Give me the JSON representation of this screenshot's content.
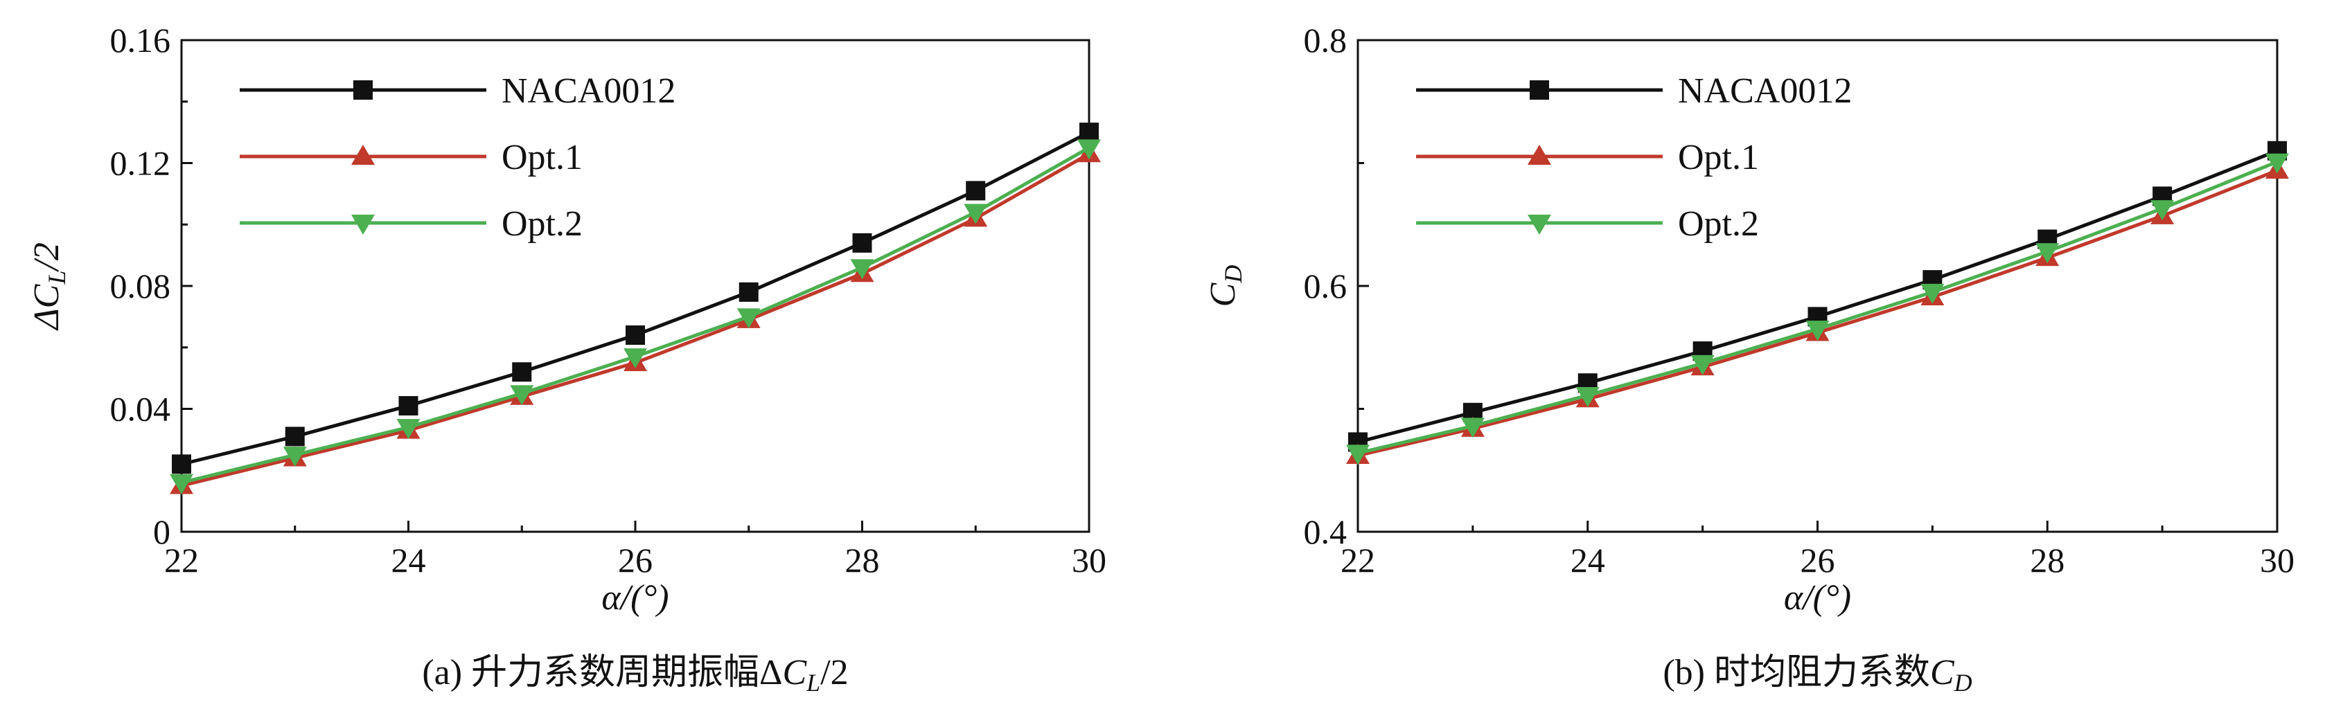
{
  "chart_data": [
    {
      "type": "line",
      "xlabel": "α/(°)",
      "ylabel": "ΔC_L/2",
      "caption": "(a) 升力系数周期振幅ΔC_L/2",
      "xlim": [
        22,
        30
      ],
      "ylim": [
        0,
        0.16
      ],
      "xticks": [
        22,
        24,
        26,
        28,
        30
      ],
      "yticks": [
        0,
        0.04,
        0.08,
        0.12,
        0.16
      ],
      "ytick_labels": [
        "0",
        "0.04",
        "0.08",
        "0.12",
        "0.16"
      ],
      "x": [
        22,
        23,
        24,
        25,
        26,
        27,
        28,
        29,
        30
      ],
      "legend_position": "top-left",
      "grid": false,
      "series": [
        {
          "name": "NACA0012",
          "color": "#111111",
          "marker": "square",
          "values": [
            0.022,
            0.031,
            0.041,
            0.052,
            0.064,
            0.078,
            0.094,
            0.111,
            0.13
          ]
        },
        {
          "name": "Opt.1",
          "color": "#c0392b",
          "marker": "triangle-up",
          "values": [
            0.015,
            0.024,
            0.033,
            0.044,
            0.055,
            0.069,
            0.084,
            0.102,
            0.123
          ]
        },
        {
          "name": "Opt.2",
          "color": "#4caf50",
          "marker": "triangle-down",
          "values": [
            0.016,
            0.025,
            0.034,
            0.045,
            0.057,
            0.07,
            0.086,
            0.104,
            0.125
          ]
        }
      ]
    },
    {
      "type": "line",
      "xlabel": "α/(°)",
      "ylabel": "C_D",
      "caption": "(b) 时均阻力系数C_D",
      "xlim": [
        22,
        30
      ],
      "ylim": [
        0.4,
        0.8
      ],
      "xticks": [
        22,
        24,
        26,
        28,
        30
      ],
      "yticks": [
        0.4,
        0.6,
        0.8
      ],
      "ytick_labels": [
        "0.4",
        "0.6",
        "0.8"
      ],
      "x": [
        22,
        23,
        24,
        25,
        26,
        27,
        28,
        29,
        30
      ],
      "legend_position": "top-left",
      "grid": false,
      "series": [
        {
          "name": "NACA0012",
          "color": "#111111",
          "marker": "square",
          "values": [
            0.473,
            0.497,
            0.521,
            0.547,
            0.575,
            0.605,
            0.638,
            0.673,
            0.71
          ]
        },
        {
          "name": "Opt.1",
          "color": "#c0392b",
          "marker": "triangle-up",
          "values": [
            0.462,
            0.484,
            0.508,
            0.534,
            0.562,
            0.591,
            0.623,
            0.657,
            0.694
          ]
        },
        {
          "name": "Opt.2",
          "color": "#4caf50",
          "marker": "triangle-down",
          "values": [
            0.464,
            0.486,
            0.511,
            0.537,
            0.565,
            0.595,
            0.628,
            0.663,
            0.701
          ]
        }
      ]
    }
  ]
}
